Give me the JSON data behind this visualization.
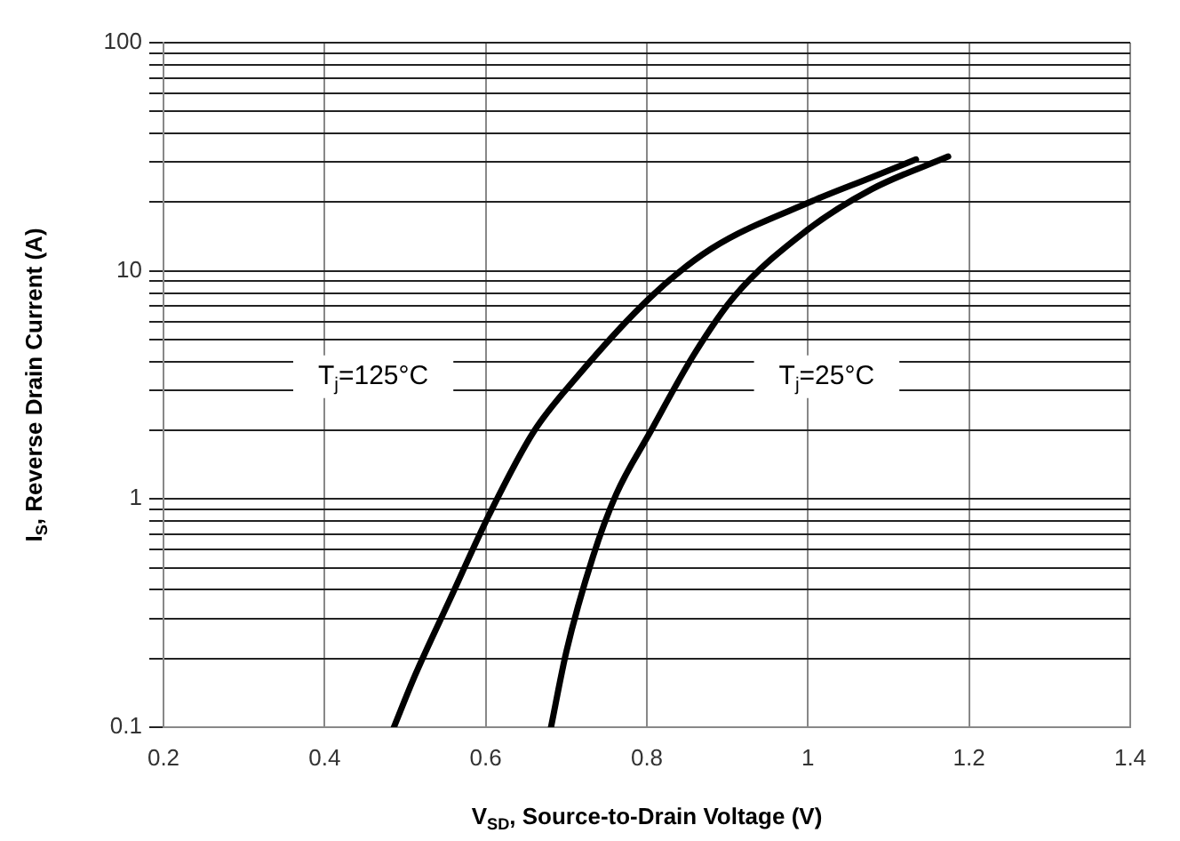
{
  "chart_data": {
    "type": "line",
    "xlabel": "V$_{SD}$, Source-to-Drain Voltage (V)",
    "ylabel": "I$_{S}$, Reverse Drain Current (A)",
    "series": [
      {
        "color": "#000000",
        "x": [
          0.486,
          0.512,
          0.556,
          0.604,
          0.659,
          0.711,
          0.806,
          0.88,
          1.005,
          1.079,
          1.134
        ],
        "values": [
          0.1,
          0.168,
          0.366,
          0.85,
          1.96,
          3.36,
          7.75,
          12.5,
          20.2,
          25.7,
          30.8
        ]
      },
      {
        "color": "#000000",
        "x": [
          0.681,
          0.7,
          0.733,
          0.762,
          0.804,
          0.858,
          0.909,
          0.998,
          1.079,
          1.174
        ],
        "values": [
          0.1,
          0.214,
          0.558,
          1.05,
          1.96,
          4.27,
          7.75,
          15.0,
          22.8,
          31.7
        ]
      }
    ],
    "xlim": [
      0.2,
      1.4
    ],
    "xticks": [
      0.2,
      0.4,
      0.6,
      0.8,
      1,
      1.2,
      1.4
    ],
    "ylim": [
      0.1,
      100
    ],
    "yticks": [
      0.1,
      {
        "value": 0.2,
        "label": null
      },
      {
        "value": 0.3,
        "label": null
      },
      {
        "value": 0.4,
        "label": null
      },
      {
        "value": 0.5,
        "label": null
      },
      {
        "value": 0.6,
        "label": null
      },
      {
        "value": 0.7,
        "label": null
      },
      {
        "value": 0.8,
        "label": null
      },
      {
        "value": 0.9,
        "label": null
      },
      1,
      {
        "value": 2,
        "label": null
      },
      {
        "value": 3,
        "label": null
      },
      {
        "value": 4,
        "label": null
      },
      {
        "value": 5,
        "label": null
      },
      {
        "value": 6,
        "label": null
      },
      {
        "value": 7,
        "label": null
      },
      {
        "value": 8,
        "label": null
      },
      {
        "value": 9,
        "label": null
      },
      10,
      {
        "value": 20,
        "label": null
      },
      {
        "value": 30,
        "label": null
      },
      {
        "value": 40,
        "label": null
      },
      {
        "value": 50,
        "label": null
      },
      {
        "value": 60,
        "label": null
      },
      {
        "value": 70,
        "label": null
      },
      {
        "value": 80,
        "label": null
      },
      {
        "value": 90,
        "label": null
      },
      100
    ],
    "log": "y",
    "grid": true,
    "legend": false,
    "marker": "none",
    "line_style": "solid",
    "annotations": [
      "T$_{j}$=125°C",
      "T$_{j}$=25°C"
    ]
  }
}
